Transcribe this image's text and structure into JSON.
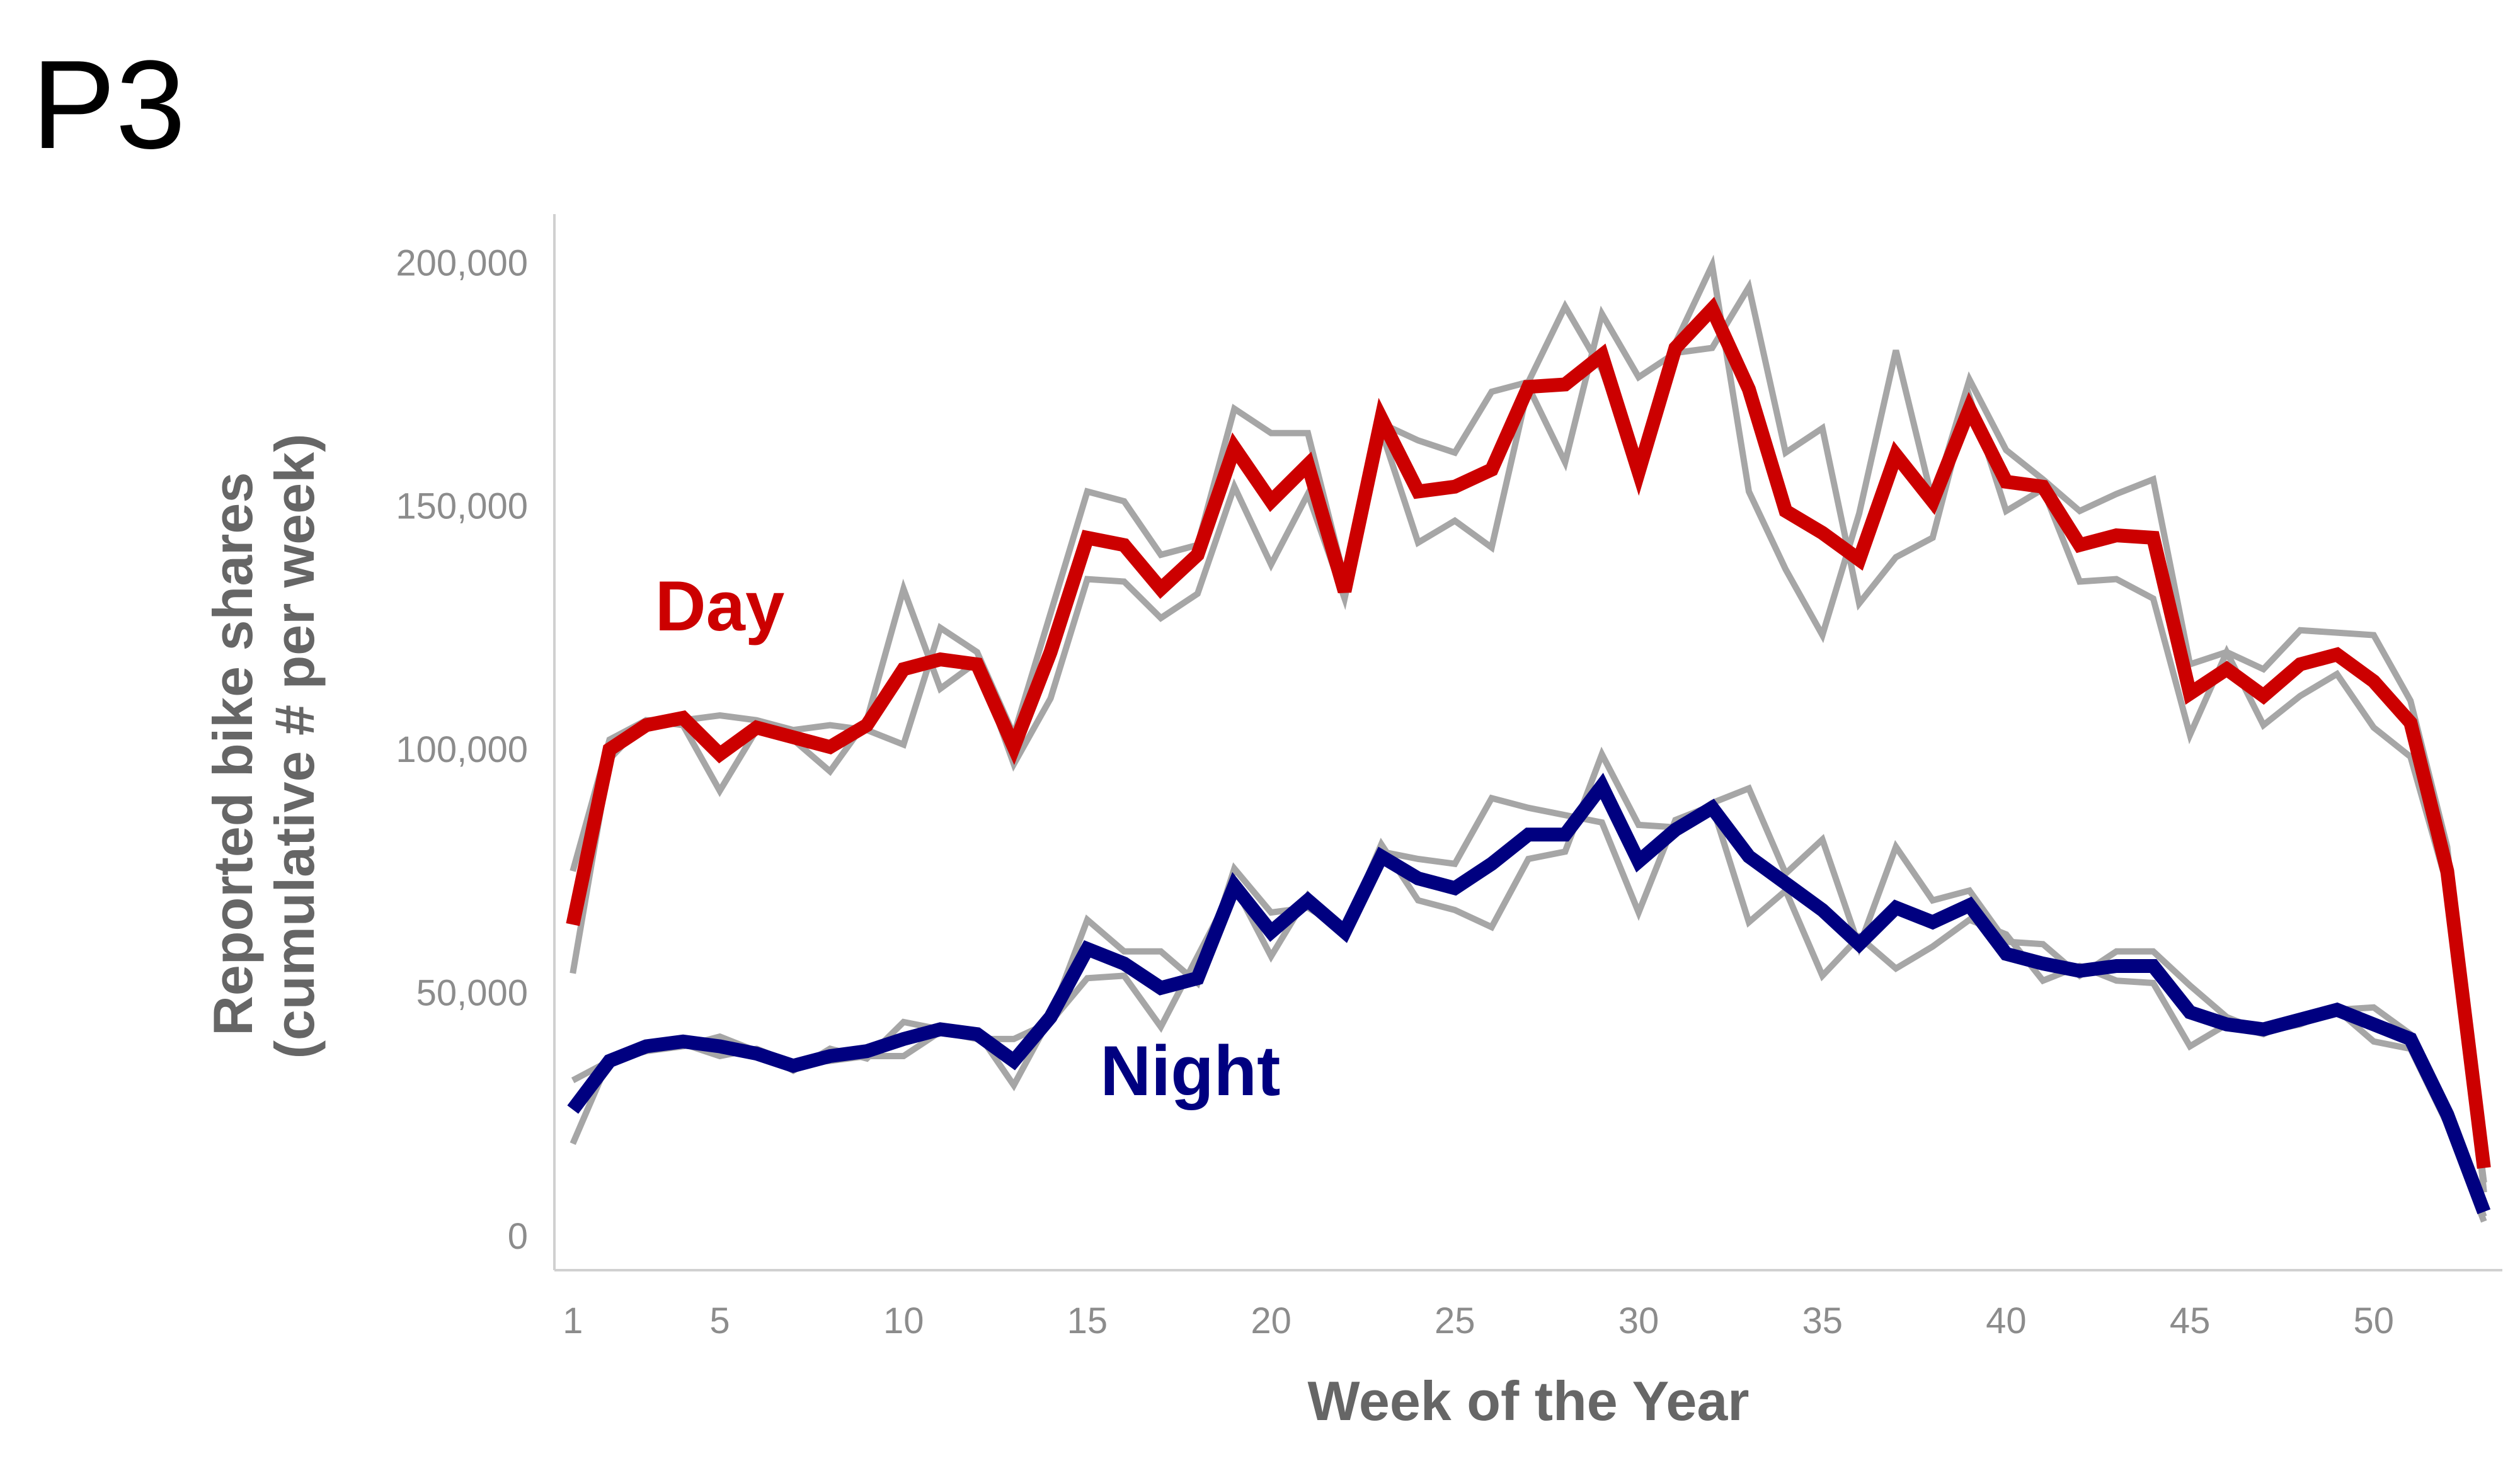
{
  "panel_label": "P3",
  "colors": {
    "day": "#cc0000",
    "night": "#000080",
    "replicate": "#a6a6a6",
    "axis": "#d0d0d0",
    "tick_text": "#8c8c8c",
    "axis_title": "#666666"
  },
  "chart_data": {
    "type": "line",
    "title": "",
    "xlabel": "Week of the Year",
    "ylabel": [
      "Reported bike shares",
      "(cumulative # per week)"
    ],
    "xlim": [
      0.5,
      53.5
    ],
    "ylim": [
      -7000,
      210000
    ],
    "grid": false,
    "x_ticks": [
      1,
      5,
      10,
      15,
      20,
      25,
      30,
      35,
      40,
      45,
      50
    ],
    "y_ticks": [
      0,
      50000,
      100000,
      150000,
      200000
    ],
    "y_tick_labels": [
      "0",
      "50,000",
      "100,000",
      "150,000",
      "200,000"
    ],
    "x": [
      1,
      2,
      3,
      4,
      5,
      6,
      7,
      8,
      9,
      10,
      11,
      12,
      13,
      14,
      15,
      16,
      17,
      18,
      19,
      20,
      21,
      22,
      23,
      24,
      25,
      26,
      27,
      28,
      29,
      30,
      31,
      32,
      33,
      34,
      35,
      36,
      37,
      38,
      39,
      40,
      41,
      42,
      43,
      44,
      45,
      46,
      47,
      48,
      49,
      50,
      51,
      52,
      53
    ],
    "series": [
      {
        "name": "Day",
        "role": "main",
        "color": "#cc0000",
        "values": [
          64000,
          100000,
          105000,
          106500,
          99000,
          104500,
          102500,
          100500,
          105000,
          116500,
          118500,
          117500,
          100500,
          120000,
          143500,
          142000,
          133000,
          140000,
          162000,
          151000,
          158500,
          132500,
          168000,
          153000,
          154000,
          157500,
          174500,
          175000,
          181000,
          157000,
          182500,
          190500,
          174000,
          149000,
          144500,
          139000,
          160500,
          151000,
          170000,
          155000,
          154000,
          142000,
          144000,
          143500,
          111500,
          116500,
          111000,
          117500,
          119500,
          114000,
          105500,
          75000,
          14000
        ]
      },
      {
        "name": "Night",
        "role": "main",
        "color": "#000080",
        "values": [
          26000,
          36000,
          39000,
          40000,
          39000,
          37500,
          35000,
          37000,
          38000,
          40500,
          42500,
          41500,
          36000,
          45000,
          59000,
          56000,
          51000,
          53000,
          72000,
          62500,
          69000,
          62500,
          78000,
          73500,
          71500,
          76500,
          82500,
          82500,
          92500,
          77000,
          83500,
          88000,
          78000,
          72500,
          67000,
          60000,
          67500,
          64500,
          68000,
          58000,
          56000,
          54500,
          55500,
          55500,
          46000,
          43500,
          42500,
          44500,
          46500,
          43500,
          40500,
          25000,
          5000
        ]
      },
      {
        "name": "",
        "role": "replicate",
        "color": "#a6a6a6",
        "values": [
          75000,
          102000,
          106000,
          106000,
          107000,
          106000,
          104000,
          105000,
          104000,
          101000,
          125000,
          120000,
          103000,
          128000,
          153000,
          151000,
          140000,
          142000,
          170000,
          165000,
          165000,
          135000,
          167000,
          163500,
          161000,
          173500,
          175500,
          191000,
          178000,
          157000,
          183500,
          199500,
          153000,
          137000,
          123500,
          148500,
          182000,
          151000,
          176000,
          161500,
          155500,
          149000,
          152500,
          155500,
          117500,
          120000,
          116500,
          124500,
          124000,
          123500,
          110000,
          80000,
          9000
        ]
      },
      {
        "name": "",
        "role": "replicate",
        "color": "#a6a6a6",
        "values": [
          54000,
          98000,
          106000,
          105000,
          91500,
          104000,
          102000,
          95500,
          106000,
          133000,
          112500,
          118000,
          97000,
          110500,
          135000,
          134500,
          127000,
          132000,
          154000,
          138000,
          152500,
          131000,
          165500,
          142500,
          147000,
          141500,
          174500,
          159000,
          189500,
          176500,
          181500,
          182500,
          195000,
          161000,
          166000,
          130000,
          139500,
          143500,
          172500,
          149000,
          153500,
          134500,
          135000,
          131000,
          103000,
          120000,
          105000,
          111000,
          115500,
          104500,
          98500,
          72000,
          11000
        ]
      },
      {
        "name": "",
        "role": "replicate",
        "color": "#a6a6a6",
        "values": [
          32000,
          36000,
          38000,
          39000,
          41000,
          38000,
          34000,
          38500,
          36500,
          44000,
          42500,
          42000,
          31000,
          45000,
          65000,
          58500,
          58500,
          52000,
          75500,
          66500,
          67500,
          63000,
          80500,
          69000,
          67000,
          63500,
          77500,
          79000,
          99000,
          84500,
          84000,
          89000,
          92000,
          74500,
          81500,
          59500,
          80000,
          69000,
          71000,
          60500,
          60000,
          53500,
          58500,
          58500,
          51500,
          45000,
          42000,
          43500,
          46500,
          47000,
          41500,
          24000,
          4000
        ]
      },
      {
        "name": "",
        "role": "replicate",
        "color": "#a6a6a6",
        "values": [
          19000,
          36500,
          39500,
          39500,
          37000,
          38500,
          35500,
          36000,
          37000,
          37000,
          42000,
          40500,
          40500,
          44000,
          53000,
          53500,
          43000,
          57500,
          72000,
          57500,
          70000,
          62000,
          79000,
          77500,
          76500,
          90000,
          88000,
          86500,
          85000,
          66500,
          85500,
          88500,
          64500,
          71000,
          53500,
          61500,
          55000,
          59500,
          65000,
          62000,
          52500,
          55500,
          52500,
          52000,
          39000,
          43500,
          41500,
          45000,
          46500,
          40000,
          38500,
          23000,
          3000
        ]
      }
    ],
    "annotations": [
      {
        "text": "Day",
        "x": 5,
        "y": 124500,
        "color": "#cc0000"
      },
      {
        "text": "Night",
        "x": 17.8,
        "y": 29000,
        "color": "#000080"
      }
    ]
  }
}
